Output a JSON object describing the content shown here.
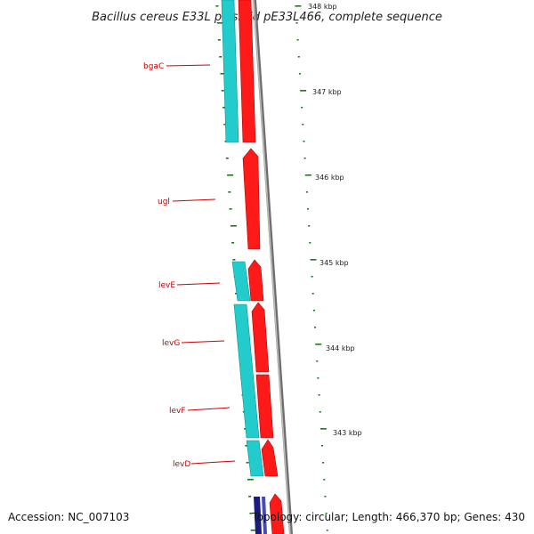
{
  "title": "Bacillus cereus E33L plasmid pE33L466, complete sequence",
  "footer": {
    "accession": "Accession: NC_007103",
    "topology": "Topology: circular; Length: 466,370 bp; Genes: 430"
  },
  "colors": {
    "forward_cds": "#ff0000",
    "forward_gene": "#22cccc",
    "reverse_cds": "#1a1a80",
    "backbone": "#8a8a8a",
    "label": "#cc0000",
    "tick": "#1a7a1a"
  },
  "scale_labels": [
    {
      "kbp": 348,
      "label": "348 kbp"
    },
    {
      "kbp": 347,
      "label": "347 kbp"
    },
    {
      "kbp": 346,
      "label": "346 kbp"
    },
    {
      "kbp": 345,
      "label": "345 kbp"
    },
    {
      "kbp": 344,
      "label": "344 kbp"
    },
    {
      "kbp": 343,
      "label": "343 kbp"
    }
  ],
  "gene_labels": [
    "bgaC",
    "ugl",
    "levE",
    "levG",
    "levF",
    "levD"
  ]
}
